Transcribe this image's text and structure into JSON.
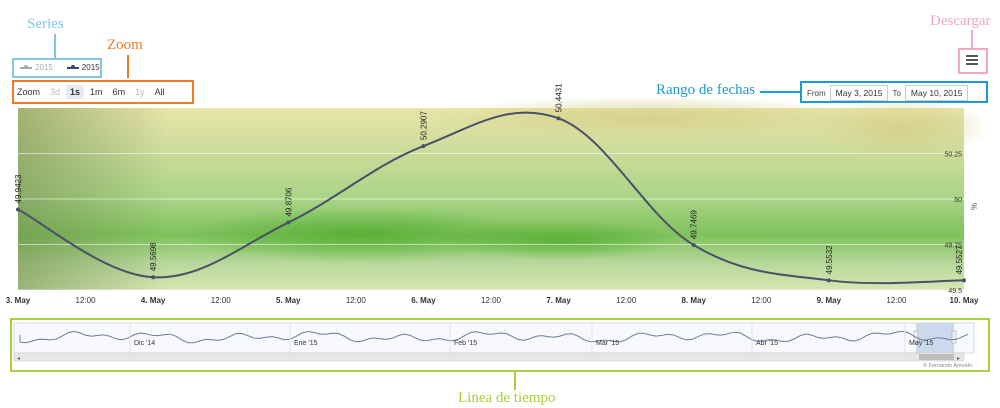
{
  "annotations": {
    "series": "Series",
    "zoom": "Zoom",
    "download": "Descargar",
    "date_range": "Rango de fechas",
    "timeline": "Linea de tiempo"
  },
  "legend": {
    "items": [
      {
        "label": "2015",
        "color": "#a9a9a9"
      },
      {
        "label": "2015",
        "color": "#3b4a6b"
      }
    ]
  },
  "zoom": {
    "label": "Zoom",
    "buttons": [
      {
        "label": "3d",
        "state": "disabled"
      },
      {
        "label": "1s",
        "state": "active"
      },
      {
        "label": "1m",
        "state": "normal"
      },
      {
        "label": "6m",
        "state": "normal"
      },
      {
        "label": "1y",
        "state": "disabled"
      },
      {
        "label": "All",
        "state": "normal"
      }
    ]
  },
  "range": {
    "from_label": "From",
    "from_value": "May 3, 2015",
    "to_label": "To",
    "to_value": "May 10, 2015"
  },
  "menu_icon": "hamburger-menu-icon",
  "colors": {
    "annot_series": "#7fc7e3",
    "annot_zoom": "#f07a28",
    "annot_download": "#f2a7c3",
    "annot_range": "#1a9ad6",
    "annot_timeline": "#a8cf3c",
    "line": "#4a5068"
  },
  "chart_data": {
    "type": "line",
    "x_ticks": [
      "3. May",
      "12:00",
      "4. May",
      "12:00",
      "5. May",
      "12:00",
      "6. May",
      "12:00",
      "7. May",
      "12:00",
      "8. May",
      "12:00",
      "9. May",
      "12:00",
      "10. May"
    ],
    "y_ticks": [
      "50.25",
      "50",
      "49.75",
      "49.5"
    ],
    "y_unit": "%",
    "ylim": [
      49.5,
      50.5
    ],
    "series": [
      {
        "x": [
          "2015-05-03",
          "2015-05-04",
          "2015-05-05",
          "2015-05-06",
          "2015-05-07",
          "2015-05-08",
          "2015-05-09",
          "2015-05-10"
        ],
        "values": [
          49.9423,
          49.5698,
          49.8706,
          50.2907,
          50.4431,
          49.7469,
          49.5532,
          49.5527
        ],
        "labels": [
          "49.9423",
          "49.5698",
          "49.8706",
          "50.2907",
          "50.4431",
          "49.7469",
          "49.5532",
          "49.5527"
        ]
      }
    ]
  },
  "navigator": {
    "labels": [
      "Dic '14",
      "Ene '15",
      "Feb '15",
      "Mar '15",
      "Abr '15",
      "May '15"
    ],
    "credit": "© Fernando Arevalo"
  }
}
